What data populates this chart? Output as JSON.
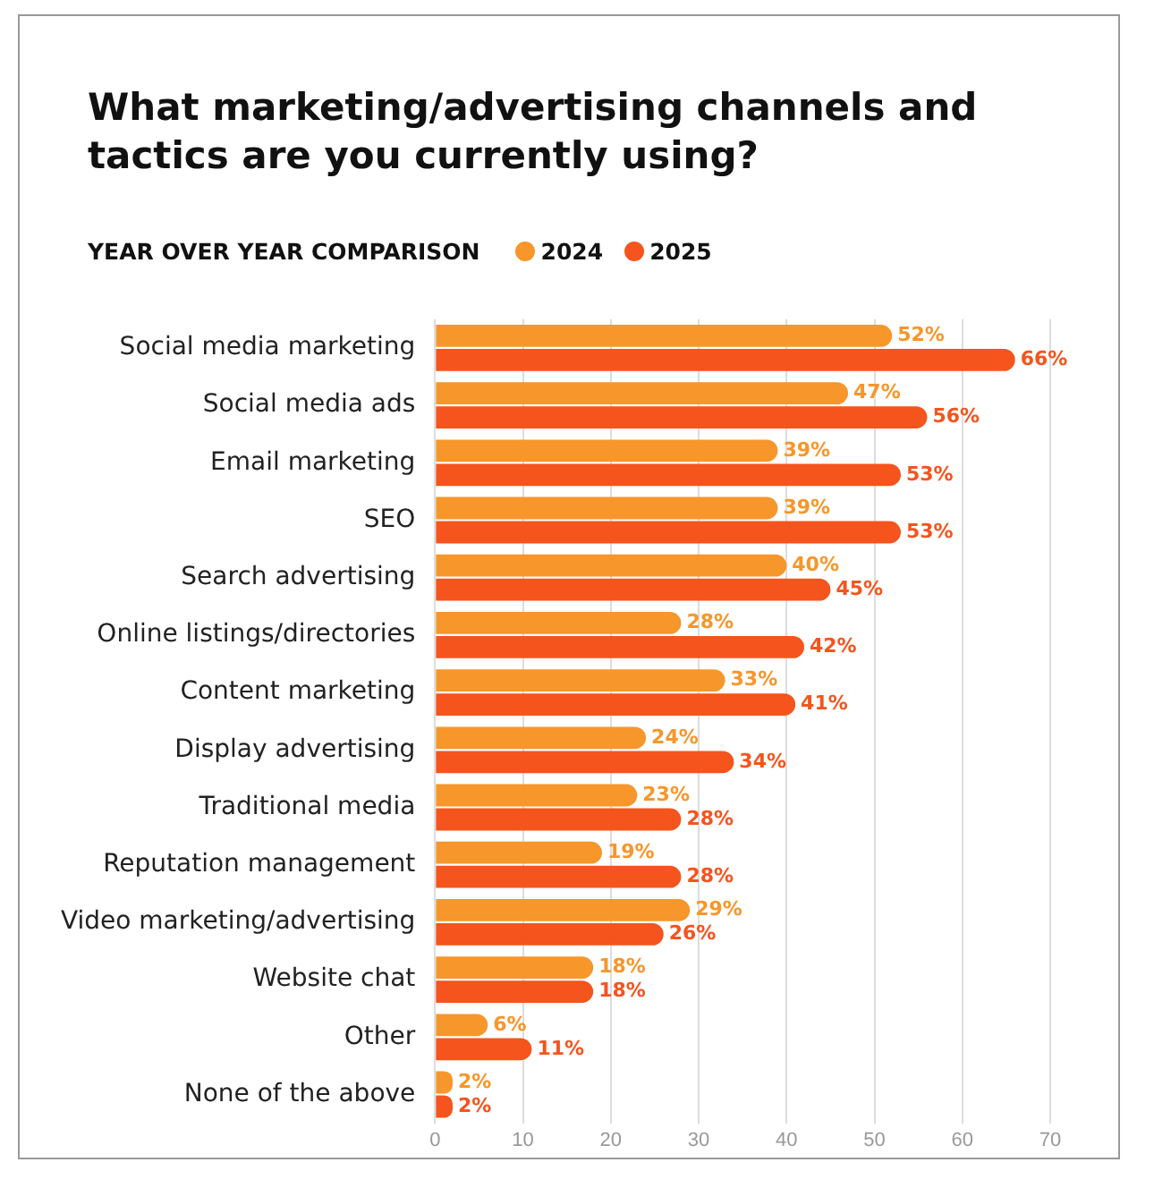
{
  "chart_data": {
    "type": "bar",
    "orientation": "horizontal",
    "title": "What marketing/advertising channels and tactics are you currently using?",
    "subtitle": "YEAR OVER YEAR COMPARISON",
    "categories": [
      "Social media marketing",
      "Social media ads",
      "Email marketing",
      "SEO",
      "Search advertising",
      "Online listings/directories",
      "Content marketing",
      "Display advertising",
      "Traditional media",
      "Reputation management",
      "Video marketing/advertising",
      "Website chat",
      "Other",
      "None of the above"
    ],
    "series": [
      {
        "name": "2024",
        "color": "#f7962a",
        "values": [
          52,
          47,
          39,
          39,
          40,
          28,
          33,
          24,
          23,
          19,
          29,
          18,
          6,
          2
        ],
        "value_labels": [
          "52%",
          "47%",
          "39%",
          "39%",
          "40%",
          "28%",
          "33%",
          "24%",
          "23%",
          "19%",
          "29%",
          "18%",
          "6%",
          "2%"
        ]
      },
      {
        "name": "2025",
        "color": "#f5541d",
        "values": [
          66,
          56,
          53,
          53,
          45,
          42,
          41,
          34,
          28,
          28,
          26,
          18,
          11,
          2
        ],
        "value_labels": [
          "66%",
          "56%",
          "53%",
          "53%",
          "45%",
          "42%",
          "41%",
          "34%",
          "28%",
          "28%",
          "26%",
          "18%",
          "11%",
          "2%"
        ]
      }
    ],
    "xlim": [
      0,
      70
    ],
    "xticks": [
      0,
      10,
      20,
      30,
      40,
      50,
      60,
      70
    ],
    "grid": "x",
    "legend": "top left"
  }
}
